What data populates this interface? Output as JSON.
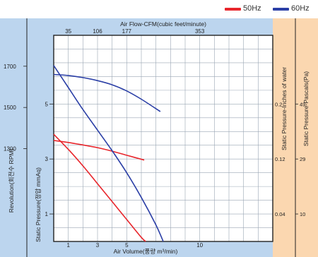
{
  "legend": [
    {
      "name": "50Hz",
      "color": "#e8262c"
    },
    {
      "name": "60Hz",
      "color": "#2b3fa6"
    }
  ],
  "panel_colors": {
    "left_panel": "#bcd5ee",
    "right_panel": "#fbd7b0",
    "plot_bg": "#ffffff",
    "grid": "#9aa6b4",
    "frame": "#222222"
  },
  "chart_data": {
    "type": "line",
    "top_axis": {
      "label": "Air Flow-CFM(cubic feet/minute)",
      "ticks": [
        {
          "label": "35",
          "value": 1
        },
        {
          "label": "106",
          "value": 3
        },
        {
          "label": "177",
          "value": 5
        },
        {
          "label": "353",
          "value": 10
        }
      ]
    },
    "x_axis": {
      "label": "Air Volume(풍량 m³/min)",
      "xlim": [
        0,
        15
      ],
      "ticks": [
        1,
        3,
        5,
        10
      ]
    },
    "rpm_axis": {
      "label": "Revolution(회전수 RPM)",
      "ylim": [
        850,
        1850
      ],
      "ticks": [
        1700,
        1500,
        1300
      ]
    },
    "pressure_axis": {
      "label": "Static Pressure(정압 mmAq)",
      "ylim": [
        0,
        7.5
      ],
      "ticks": [
        5,
        3,
        1
      ]
    },
    "right_inner_axis": {
      "label": "Static Pressure-Inches of water",
      "ticks": [
        {
          "label": "0.2",
          "value": 5
        },
        {
          "label": "0.12",
          "value": 3
        },
        {
          "label": "0.04",
          "value": 1
        }
      ]
    },
    "right_outer_axis": {
      "label": "Static Pressure-Pascals(Pa)",
      "ticks": [
        {
          "label": "49",
          "value": 5
        },
        {
          "label": "29",
          "value": 3
        },
        {
          "label": "10",
          "value": 1
        }
      ]
    },
    "grid": true,
    "series": [
      {
        "name": "50Hz",
        "kind": "rpm",
        "color": "#e8262c",
        "x": [
          0,
          1,
          2,
          3,
          4,
          5,
          6.2
        ],
        "y": [
          1340,
          1330,
          1318,
          1305,
          1288,
          1268,
          1245
        ]
      },
      {
        "name": "60Hz",
        "kind": "rpm",
        "color": "#2b3fa6",
        "x": [
          0,
          1,
          2,
          3,
          4,
          5,
          6,
          7.3
        ],
        "y": [
          1660,
          1655,
          1645,
          1630,
          1610,
          1580,
          1540,
          1480
        ]
      },
      {
        "name": "50Hz",
        "kind": "pressure",
        "color": "#e8262c",
        "x": [
          0,
          1,
          2,
          3,
          4,
          5,
          6,
          6.3
        ],
        "y": [
          3.9,
          3.35,
          2.75,
          2.1,
          1.45,
          0.8,
          0.15,
          0
        ]
      },
      {
        "name": "60Hz",
        "kind": "pressure",
        "color": "#2b3fa6",
        "x": [
          0,
          1,
          2,
          3,
          4,
          5,
          6,
          7,
          7.5
        ],
        "y": [
          6.4,
          5.6,
          4.8,
          4.05,
          3.3,
          2.5,
          1.6,
          0.6,
          0
        ]
      }
    ]
  }
}
